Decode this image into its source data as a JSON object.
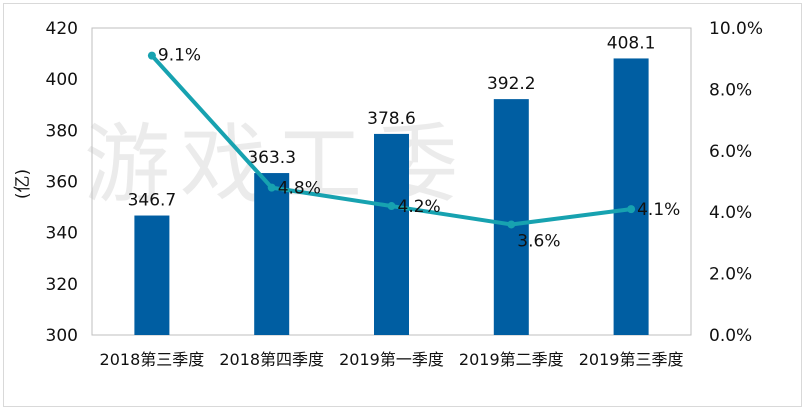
{
  "watermark": "游戏工委",
  "chart_data": {
    "type": "bar",
    "categories": [
      "2018第三季度",
      "2018第四季度",
      "2019第一季度",
      "2019第二季度",
      "2019第三季度"
    ],
    "series": [
      {
        "type": "bar",
        "axis": "left",
        "values": [
          346.7,
          363.3,
          378.6,
          392.2,
          408.1
        ],
        "labels": [
          "346.7",
          "363.3",
          "378.6",
          "392.2",
          "408.1"
        ],
        "color": "#005EA2"
      },
      {
        "type": "line",
        "axis": "right",
        "values": [
          9.1,
          4.8,
          4.2,
          3.6,
          4.1
        ],
        "labels": [
          "9.1%",
          "4.8%",
          "4.2%",
          "3.6%",
          "4.1%"
        ],
        "color": "#17A2B0"
      }
    ],
    "ylabel": "(亿)",
    "ylim": [
      300,
      420
    ],
    "yticks": [
      "300",
      "320",
      "340",
      "360",
      "380",
      "400",
      "420"
    ],
    "y2lim": [
      0,
      10
    ],
    "y2ticks": [
      "0.0%",
      "2.0%",
      "4.0%",
      "6.0%",
      "8.0%",
      "10.0%"
    ],
    "grid": false,
    "legend": "none"
  }
}
